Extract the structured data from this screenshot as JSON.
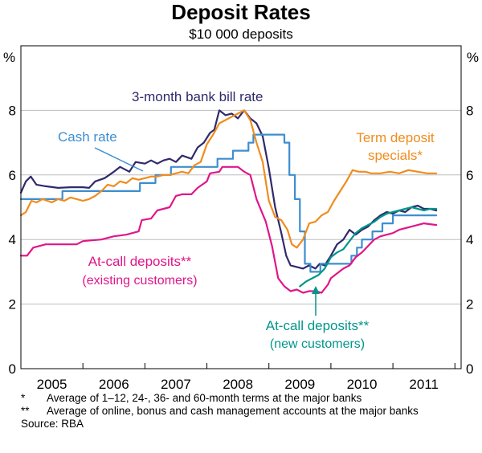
{
  "chart_data": {
    "type": "line",
    "title": "Deposit Rates",
    "subtitle": "$10 000 deposits",
    "ylabel_left": "%",
    "ylabel_right": "%",
    "ylim": [
      0,
      10
    ],
    "yticks": [
      0,
      2,
      4,
      6,
      8
    ],
    "xlim": [
      2004.5,
      2011.6
    ],
    "xticks": [
      {
        "label": "2005",
        "value": 2005
      },
      {
        "label": "2006",
        "value": 2006
      },
      {
        "label": "2007",
        "value": 2007
      },
      {
        "label": "2008",
        "value": 2008
      },
      {
        "label": "2009",
        "value": 2009
      },
      {
        "label": "2010",
        "value": 2010
      },
      {
        "label": "2011",
        "value": 2011
      }
    ],
    "series": [
      {
        "name": "3-month bank bill rate",
        "color": "#2e2a6b",
        "step": false,
        "points": [
          [
            2004.5,
            5.45
          ],
          [
            2004.58,
            5.8
          ],
          [
            2004.66,
            5.95
          ],
          [
            2004.75,
            5.7
          ],
          [
            2004.9,
            5.65
          ],
          [
            2005.1,
            5.6
          ],
          [
            2005.3,
            5.62
          ],
          [
            2005.5,
            5.62
          ],
          [
            2005.6,
            5.6
          ],
          [
            2005.7,
            5.8
          ],
          [
            2005.85,
            5.9
          ],
          [
            2006.0,
            6.1
          ],
          [
            2006.1,
            6.25
          ],
          [
            2006.25,
            6.1
          ],
          [
            2006.35,
            6.4
          ],
          [
            2006.5,
            6.35
          ],
          [
            2006.6,
            6.45
          ],
          [
            2006.7,
            6.35
          ],
          [
            2006.8,
            6.45
          ],
          [
            2006.9,
            6.5
          ],
          [
            2007.0,
            6.4
          ],
          [
            2007.1,
            6.6
          ],
          [
            2007.25,
            6.5
          ],
          [
            2007.35,
            6.85
          ],
          [
            2007.45,
            7.0
          ],
          [
            2007.55,
            7.3
          ],
          [
            2007.62,
            7.4
          ],
          [
            2007.7,
            8.0
          ],
          [
            2007.8,
            7.85
          ],
          [
            2007.9,
            7.9
          ],
          [
            2008.0,
            7.75
          ],
          [
            2008.1,
            8.0
          ],
          [
            2008.2,
            7.75
          ],
          [
            2008.3,
            7.6
          ],
          [
            2008.4,
            7.2
          ],
          [
            2008.5,
            6.2
          ],
          [
            2008.6,
            5.0
          ],
          [
            2008.7,
            4.2
          ],
          [
            2008.78,
            3.5
          ],
          [
            2008.85,
            3.2
          ],
          [
            2008.95,
            3.15
          ],
          [
            2009.05,
            3.1
          ],
          [
            2009.15,
            3.2
          ],
          [
            2009.25,
            3.1
          ],
          [
            2009.32,
            3.25
          ],
          [
            2009.4,
            3.2
          ],
          [
            2009.5,
            3.5
          ],
          [
            2009.6,
            3.85
          ],
          [
            2009.7,
            4.0
          ],
          [
            2009.8,
            4.3
          ],
          [
            2009.9,
            4.15
          ],
          [
            2010.0,
            4.3
          ],
          [
            2010.1,
            4.4
          ],
          [
            2010.2,
            4.6
          ],
          [
            2010.3,
            4.75
          ],
          [
            2010.4,
            4.85
          ],
          [
            2010.5,
            4.8
          ],
          [
            2010.6,
            4.9
          ],
          [
            2010.7,
            4.85
          ],
          [
            2010.8,
            5.0
          ],
          [
            2010.9,
            5.05
          ],
          [
            2011.0,
            4.95
          ],
          [
            2011.1,
            4.95
          ],
          [
            2011.2,
            4.9
          ]
        ]
      },
      {
        "name": "Cash rate",
        "color": "#3d8ed0",
        "step": true,
        "points": [
          [
            2004.5,
            5.25
          ],
          [
            2005.17,
            5.5
          ],
          [
            2006.42,
            5.75
          ],
          [
            2006.67,
            6.0
          ],
          [
            2006.92,
            6.25
          ],
          [
            2007.67,
            6.5
          ],
          [
            2007.92,
            6.75
          ],
          [
            2008.17,
            7.0
          ],
          [
            2008.25,
            7.25
          ],
          [
            2008.75,
            7.0
          ],
          [
            2008.83,
            6.0
          ],
          [
            2008.92,
            5.25
          ],
          [
            2009.0,
            4.25
          ],
          [
            2009.08,
            3.25
          ],
          [
            2009.17,
            3.0
          ],
          [
            2009.33,
            3.25
          ],
          [
            2009.83,
            3.5
          ],
          [
            2009.92,
            3.75
          ],
          [
            2010.0,
            4.0
          ],
          [
            2010.17,
            4.25
          ],
          [
            2010.33,
            4.5
          ],
          [
            2010.5,
            4.75
          ],
          [
            2011.2,
            4.75
          ]
        ]
      },
      {
        "name": "Term deposit specials*",
        "color": "#f08c1e",
        "step": false,
        "points": [
          [
            2004.5,
            4.75
          ],
          [
            2004.58,
            4.85
          ],
          [
            2004.67,
            5.2
          ],
          [
            2004.75,
            5.15
          ],
          [
            2004.85,
            5.25
          ],
          [
            2005.0,
            5.15
          ],
          [
            2005.1,
            5.25
          ],
          [
            2005.2,
            5.2
          ],
          [
            2005.3,
            5.3
          ],
          [
            2005.4,
            5.25
          ],
          [
            2005.5,
            5.2
          ],
          [
            2005.6,
            5.25
          ],
          [
            2005.7,
            5.35
          ],
          [
            2005.8,
            5.5
          ],
          [
            2005.9,
            5.7
          ],
          [
            2006.0,
            5.65
          ],
          [
            2006.1,
            5.8
          ],
          [
            2006.2,
            5.75
          ],
          [
            2006.3,
            5.9
          ],
          [
            2006.4,
            5.85
          ],
          [
            2006.5,
            5.9
          ],
          [
            2006.6,
            5.95
          ],
          [
            2006.7,
            5.95
          ],
          [
            2006.8,
            6.0
          ],
          [
            2006.9,
            6.0
          ],
          [
            2007.0,
            6.05
          ],
          [
            2007.1,
            6.1
          ],
          [
            2007.2,
            6.05
          ],
          [
            2007.3,
            6.3
          ],
          [
            2007.4,
            6.4
          ],
          [
            2007.5,
            6.95
          ],
          [
            2007.6,
            7.25
          ],
          [
            2007.7,
            7.6
          ],
          [
            2007.8,
            7.7
          ],
          [
            2007.9,
            7.8
          ],
          [
            2008.0,
            7.9
          ],
          [
            2008.1,
            8.0
          ],
          [
            2008.2,
            7.7
          ],
          [
            2008.3,
            7.0
          ],
          [
            2008.4,
            6.4
          ],
          [
            2008.5,
            5.2
          ],
          [
            2008.6,
            4.7
          ],
          [
            2008.7,
            4.6
          ],
          [
            2008.8,
            4.3
          ],
          [
            2008.87,
            3.85
          ],
          [
            2008.95,
            3.75
          ],
          [
            2009.05,
            4.0
          ],
          [
            2009.15,
            4.5
          ],
          [
            2009.25,
            4.55
          ],
          [
            2009.35,
            4.75
          ],
          [
            2009.45,
            4.85
          ],
          [
            2009.55,
            5.2
          ],
          [
            2009.65,
            5.5
          ],
          [
            2009.75,
            5.8
          ],
          [
            2009.85,
            6.15
          ],
          [
            2009.95,
            6.1
          ],
          [
            2010.05,
            6.1
          ],
          [
            2010.15,
            6.05
          ],
          [
            2010.3,
            6.05
          ],
          [
            2010.45,
            6.1
          ],
          [
            2010.6,
            6.05
          ],
          [
            2010.75,
            6.15
          ],
          [
            2010.9,
            6.1
          ],
          [
            2011.05,
            6.05
          ],
          [
            2011.2,
            6.05
          ]
        ]
      },
      {
        "name": "At-call deposits** (existing customers)",
        "color": "#e0168a",
        "step": false,
        "points": [
          [
            2004.5,
            3.5
          ],
          [
            2004.6,
            3.5
          ],
          [
            2004.7,
            3.75
          ],
          [
            2004.9,
            3.85
          ],
          [
            2005.2,
            3.85
          ],
          [
            2005.4,
            3.85
          ],
          [
            2005.5,
            3.95
          ],
          [
            2005.8,
            4.0
          ],
          [
            2006.0,
            4.1
          ],
          [
            2006.2,
            4.15
          ],
          [
            2006.4,
            4.25
          ],
          [
            2006.45,
            4.6
          ],
          [
            2006.6,
            4.65
          ],
          [
            2006.7,
            4.9
          ],
          [
            2006.8,
            4.95
          ],
          [
            2006.9,
            5.0
          ],
          [
            2007.0,
            5.35
          ],
          [
            2007.1,
            5.4
          ],
          [
            2007.25,
            5.4
          ],
          [
            2007.35,
            5.6
          ],
          [
            2007.5,
            5.8
          ],
          [
            2007.55,
            6.05
          ],
          [
            2007.7,
            6.1
          ],
          [
            2007.75,
            6.25
          ],
          [
            2008.0,
            6.25
          ],
          [
            2008.1,
            6.1
          ],
          [
            2008.2,
            6.0
          ],
          [
            2008.3,
            5.25
          ],
          [
            2008.45,
            4.55
          ],
          [
            2008.55,
            3.8
          ],
          [
            2008.65,
            2.8
          ],
          [
            2008.75,
            2.55
          ],
          [
            2008.85,
            2.4
          ],
          [
            2008.95,
            2.45
          ],
          [
            2009.05,
            2.35
          ],
          [
            2009.15,
            2.4
          ],
          [
            2009.25,
            2.4
          ],
          [
            2009.35,
            2.35
          ],
          [
            2009.45,
            2.6
          ],
          [
            2009.5,
            2.8
          ],
          [
            2009.6,
            2.95
          ],
          [
            2009.7,
            3.1
          ],
          [
            2009.8,
            3.2
          ],
          [
            2009.9,
            3.45
          ],
          [
            2010.0,
            3.6
          ],
          [
            2010.1,
            3.8
          ],
          [
            2010.2,
            4.0
          ],
          [
            2010.3,
            4.1
          ],
          [
            2010.4,
            4.15
          ],
          [
            2010.5,
            4.2
          ],
          [
            2010.6,
            4.3
          ],
          [
            2010.7,
            4.35
          ],
          [
            2010.8,
            4.4
          ],
          [
            2010.9,
            4.45
          ],
          [
            2011.0,
            4.5
          ],
          [
            2011.2,
            4.45
          ]
        ]
      },
      {
        "name": "At-call deposits** (new customers)",
        "color": "#00968a",
        "step": false,
        "points": [
          [
            2009.0,
            2.55
          ],
          [
            2009.1,
            2.7
          ],
          [
            2009.2,
            2.8
          ],
          [
            2009.3,
            2.9
          ],
          [
            2009.4,
            3.1
          ],
          [
            2009.5,
            3.45
          ],
          [
            2009.6,
            3.6
          ],
          [
            2009.7,
            3.7
          ],
          [
            2009.8,
            3.95
          ],
          [
            2009.9,
            4.2
          ],
          [
            2010.0,
            4.35
          ],
          [
            2010.1,
            4.45
          ],
          [
            2010.2,
            4.55
          ],
          [
            2010.3,
            4.7
          ],
          [
            2010.4,
            4.8
          ],
          [
            2010.5,
            4.85
          ],
          [
            2010.6,
            4.9
          ],
          [
            2010.7,
            4.95
          ],
          [
            2010.8,
            5.0
          ],
          [
            2010.9,
            4.95
          ],
          [
            2011.0,
            4.9
          ],
          [
            2011.1,
            4.95
          ],
          [
            2011.2,
            4.95
          ]
        ]
      }
    ],
    "annotations": {
      "bill_rate": "3-month bank bill rate",
      "cash_rate": "Cash rate",
      "term_line1": "Term deposit",
      "term_line2": "specials*",
      "atcall_existing_line1": "At-call deposits**",
      "atcall_existing_line2": "(existing customers)",
      "atcall_new_line1": "At-call deposits**",
      "atcall_new_line2": "(new customers)"
    }
  },
  "notes": [
    {
      "mark": "*",
      "text": "Average of 1–12, 24-, 36- and 60-month terms at the major banks"
    },
    {
      "mark": "**",
      "text": "Average of online, bonus and cash management accounts at the major banks"
    }
  ],
  "source": "Source: RBA"
}
